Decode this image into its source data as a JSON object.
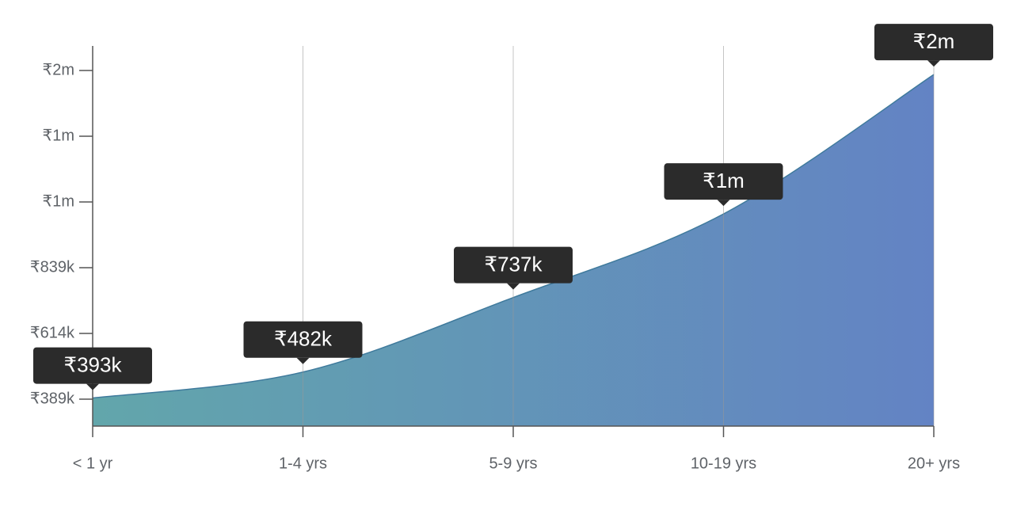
{
  "chart_data": {
    "type": "area",
    "categories": [
      "< 1 yr",
      "1-4 yrs",
      "5-9 yrs",
      "10-19 yrs",
      "20+ yrs"
    ],
    "values": [
      393000,
      482000,
      737000,
      1023000,
      1500000
    ],
    "value_labels": [
      "₹393k",
      "₹482k",
      "₹737k",
      "₹1m",
      "₹2m"
    ],
    "gradient": [
      "#62a6ab",
      "#6383c4"
    ],
    "line_color": "#3f7a9c",
    "ylim": [
      297000,
      1598000
    ],
    "yticks": [
      {
        "value": 389000,
        "label": "₹389k"
      },
      {
        "value": 614000,
        "label": "₹614k"
      },
      {
        "value": 839000,
        "label": "₹839k"
      },
      {
        "value": 1064000,
        "label": "₹1m"
      },
      {
        "value": 1289000,
        "label": "₹1m"
      },
      {
        "value": 1514000,
        "label": "₹2m"
      }
    ],
    "grid": true
  }
}
